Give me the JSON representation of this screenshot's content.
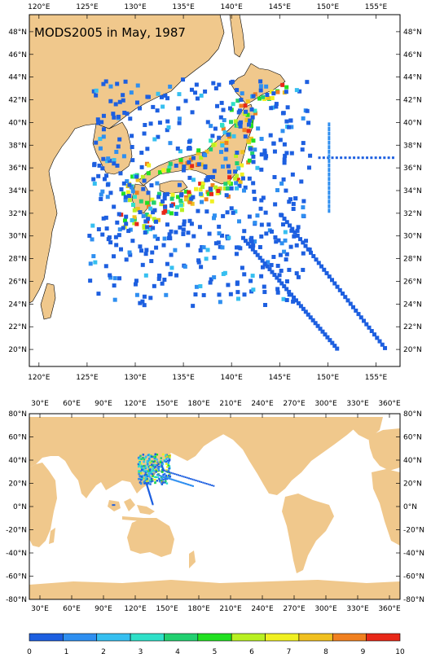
{
  "map_top": {
    "title": "MODS2005 in May, 1987",
    "lon_labels": [
      "120°E",
      "125°E",
      "130°E",
      "135°E",
      "140°E",
      "145°E",
      "150°E",
      "155°E"
    ],
    "lat_labels": [
      "48°N",
      "46°N",
      "44°N",
      "42°N",
      "40°N",
      "38°N",
      "36°N",
      "34°N",
      "32°N",
      "30°N",
      "28°N",
      "26°N",
      "24°N",
      "22°N",
      "20°N"
    ],
    "lon_range": [
      119,
      157.5
    ],
    "lat_range": [
      18.5,
      49.5
    ]
  },
  "map_bottom": {
    "lon_labels": [
      "30°E",
      "60°E",
      "90°E",
      "120°E",
      "150°E",
      "180°E",
      "210°E",
      "240°E",
      "270°E",
      "300°E",
      "330°E",
      "360°E"
    ],
    "lat_labels": [
      "80°N",
      "60°N",
      "40°N",
      "20°N",
      "0°N",
      "-20°N",
      "-40°N",
      "-60°N",
      "-80°N"
    ],
    "lon_range": [
      20,
      370
    ],
    "lat_range": [
      -80,
      80
    ]
  },
  "colorbar": {
    "tick_labels": [
      "0",
      "1",
      "2",
      "3",
      "4",
      "5",
      "6",
      "7",
      "8",
      "9",
      "10"
    ],
    "colors": [
      "#1d5fe0",
      "#2f8ff0",
      "#36bff0",
      "#2fe0c8",
      "#22d070",
      "#22e022",
      "#b8f022",
      "#f0f022",
      "#f0c020",
      "#f08020",
      "#e82818"
    ]
  },
  "colors": {
    "land": "#f0c88c",
    "ocean": "#ffffff"
  }
}
